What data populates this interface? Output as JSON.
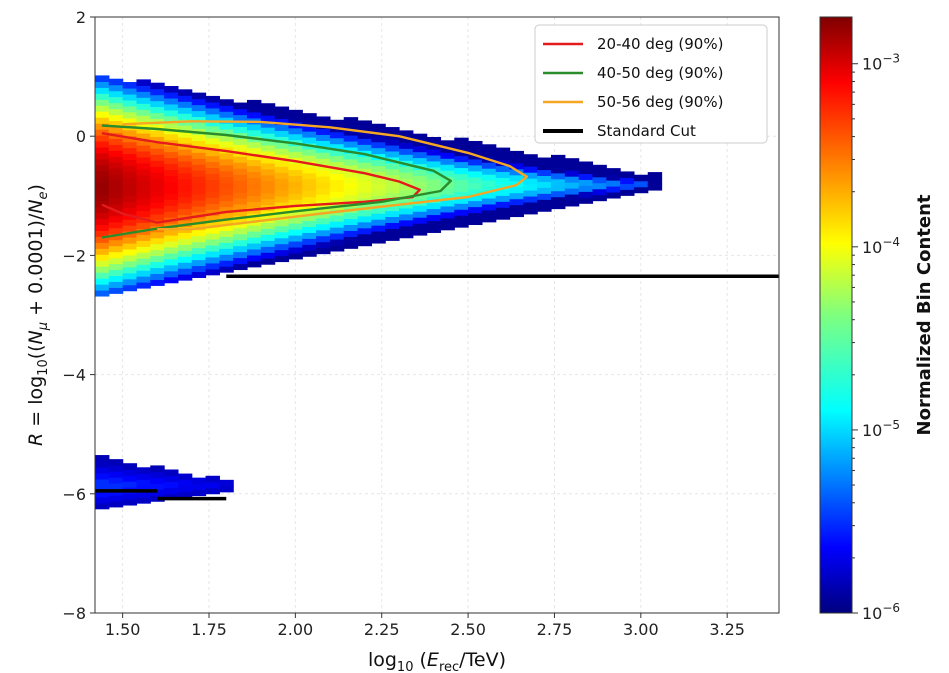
{
  "chart_data": {
    "type": "heatmap",
    "xlabel": "log10(E_rec/TeV)",
    "ylabel": "R = log10((N_μ + 0.0001)/N_e)",
    "xlim": [
      1.42,
      3.4
    ],
    "ylim": [
      -8,
      2
    ],
    "x_ticks": [
      "1.50",
      "1.75",
      "2.00",
      "2.25",
      "2.50",
      "2.75",
      "3.00",
      "3.25"
    ],
    "y_ticks": [
      "2",
      "0",
      "−2",
      "−4",
      "−6",
      "−8"
    ],
    "grid": true,
    "colorbar": {
      "label": "Normalized Bin Content",
      "scale": "log",
      "range": [
        1e-06,
        0.0018
      ],
      "ticks": [
        {
          "value": 1e-06,
          "base": "10",
          "exp": "−6"
        },
        {
          "value": 1e-05,
          "base": "10",
          "exp": "−5"
        },
        {
          "value": 0.0001,
          "base": "10",
          "exp": "−4"
        },
        {
          "value": 0.001,
          "base": "10",
          "exp": "−3"
        }
      ],
      "colormap": "jet"
    },
    "heatmap_regions": [
      {
        "name": "main",
        "x_range": [
          1.42,
          3.04
        ],
        "center_y": -0.85,
        "peak_value": 0.0015
      },
      {
        "name": "low",
        "x_range": [
          1.42,
          1.8
        ],
        "center_y": -5.85,
        "peak_value": 4e-06
      }
    ],
    "series": [
      {
        "name": "20-40 deg (90%)",
        "color": "#e41a1c",
        "x": [
          1.44,
          1.6,
          1.8,
          2.0,
          2.2,
          2.3,
          2.36,
          2.34,
          2.2,
          2.0,
          1.8,
          1.6,
          1.5,
          1.44
        ],
        "y": [
          0.05,
          -0.1,
          -0.25,
          -0.42,
          -0.62,
          -0.76,
          -0.9,
          -1.02,
          -1.1,
          -1.17,
          -1.27,
          -1.45,
          -1.3,
          -1.15
        ]
      },
      {
        "name": "40-50 deg (90%)",
        "color": "#2a8c2a",
        "x": [
          1.44,
          1.6,
          1.8,
          2.0,
          2.2,
          2.4,
          2.45,
          2.42,
          2.25,
          2.0,
          1.8,
          1.6,
          1.44
        ],
        "y": [
          0.18,
          0.12,
          0.02,
          -0.12,
          -0.3,
          -0.58,
          -0.75,
          -0.92,
          -1.1,
          -1.26,
          -1.4,
          -1.55,
          -1.7
        ]
      },
      {
        "name": "50-56 deg (90%)",
        "color": "#f5a623",
        "x": [
          1.5,
          1.7,
          1.9,
          2.1,
          2.3,
          2.5,
          2.62,
          2.67,
          2.64,
          2.5,
          2.3,
          2.1,
          1.9,
          1.7,
          1.6
        ],
        "y": [
          0.2,
          0.25,
          0.24,
          0.15,
          0.0,
          -0.28,
          -0.5,
          -0.68,
          -0.82,
          -1.02,
          -1.15,
          -1.28,
          -1.42,
          -1.56,
          -1.56
        ]
      }
    ],
    "standard_cut": {
      "name": "Standard Cut",
      "color": "#000000",
      "segments": [
        {
          "x": [
            1.8,
            3.4
          ],
          "y": [
            -2.35,
            -2.35
          ]
        },
        {
          "x": [
            1.42,
            1.6
          ],
          "y": [
            -5.95,
            -5.95
          ]
        },
        {
          "x": [
            1.6,
            1.8
          ],
          "y": [
            -6.08,
            -6.08
          ]
        }
      ]
    },
    "legend": {
      "position": "top-right",
      "entries": [
        {
          "label": "20-40 deg (90%)",
          "color": "#e41a1c"
        },
        {
          "label": "40-50 deg (90%)",
          "color": "#2a8c2a"
        },
        {
          "label": "50-56 deg (90%)",
          "color": "#f5a623"
        },
        {
          "label": "Standard Cut",
          "color": "#000000"
        }
      ]
    }
  }
}
